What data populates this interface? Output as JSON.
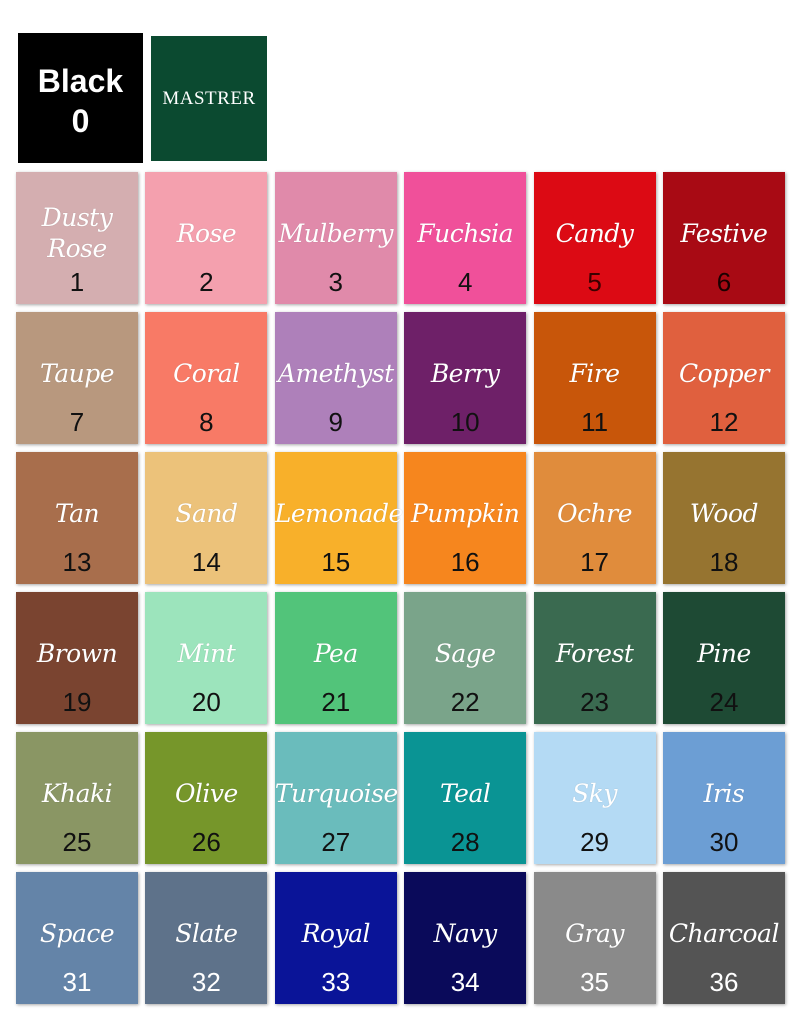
{
  "header": {
    "black_label": "Black",
    "black_number": "0",
    "brand": "MASTRER"
  },
  "swatches": [
    {
      "name": "Dusty Rose",
      "number": "1",
      "color": "#d4aeb0",
      "num_color": "#111"
    },
    {
      "name": "Rose",
      "number": "2",
      "color": "#f4a0ae",
      "num_color": "#111"
    },
    {
      "name": "Mulberry",
      "number": "3",
      "color": "#e08aaa",
      "num_color": "#111"
    },
    {
      "name": "Fuchsia",
      "number": "4",
      "color": "#f0509a",
      "num_color": "#111"
    },
    {
      "name": "Candy",
      "number": "5",
      "color": "#dc0a14",
      "num_color": "#3a0000"
    },
    {
      "name": "Festive",
      "number": "6",
      "color": "#a80a14",
      "num_color": "#1a0000"
    },
    {
      "name": "Taupe",
      "number": "7",
      "color": "#b8987e",
      "num_color": "#111"
    },
    {
      "name": "Coral",
      "number": "8",
      "color": "#f87a66",
      "num_color": "#111"
    },
    {
      "name": "Amethyst",
      "number": "9",
      "color": "#ae80ba",
      "num_color": "#111"
    },
    {
      "name": "Berry",
      "number": "10",
      "color": "#6e2068",
      "num_color": "#111"
    },
    {
      "name": "Fire",
      "number": "11",
      "color": "#c8560a",
      "num_color": "#111"
    },
    {
      "name": "Copper",
      "number": "12",
      "color": "#e0603e",
      "num_color": "#111"
    },
    {
      "name": "Tan",
      "number": "13",
      "color": "#a86e4c",
      "num_color": "#111"
    },
    {
      "name": "Sand",
      "number": "14",
      "color": "#ecc27a",
      "num_color": "#111"
    },
    {
      "name": "Lemonade",
      "number": "15",
      "color": "#f8b02a",
      "num_color": "#111"
    },
    {
      "name": "Pumpkin",
      "number": "16",
      "color": "#f6861e",
      "num_color": "#111"
    },
    {
      "name": "Ochre",
      "number": "17",
      "color": "#e08c3c",
      "num_color": "#111"
    },
    {
      "name": "Wood",
      "number": "18",
      "color": "#967430",
      "num_color": "#111"
    },
    {
      "name": "Brown",
      "number": "19",
      "color": "#7a4430",
      "num_color": "#111"
    },
    {
      "name": "Mint",
      "number": "20",
      "color": "#9ce4bc",
      "num_color": "#111"
    },
    {
      "name": "Pea",
      "number": "21",
      "color": "#52c47a",
      "num_color": "#111"
    },
    {
      "name": "Sage",
      "number": "22",
      "color": "#7aa48a",
      "num_color": "#111"
    },
    {
      "name": "Forest",
      "number": "23",
      "color": "#3a6a50",
      "num_color": "#111"
    },
    {
      "name": "Pine",
      "number": "24",
      "color": "#1e4a34",
      "num_color": "#111"
    },
    {
      "name": "Khaki",
      "number": "25",
      "color": "#8a9664",
      "num_color": "#111"
    },
    {
      "name": "Olive",
      "number": "26",
      "color": "#76962a",
      "num_color": "#111"
    },
    {
      "name": "Turquoise",
      "number": "27",
      "color": "#6abcbc",
      "num_color": "#111"
    },
    {
      "name": "Teal",
      "number": "28",
      "color": "#0a9494",
      "num_color": "#111"
    },
    {
      "name": "Sky",
      "number": "29",
      "color": "#b4daf4",
      "num_color": "#111"
    },
    {
      "name": "Iris",
      "number": "30",
      "color": "#6c9ed4",
      "num_color": "#111"
    },
    {
      "name": "Space",
      "number": "31",
      "color": "#6484a8",
      "num_color": "#fff"
    },
    {
      "name": "Slate",
      "number": "32",
      "color": "#5e728a",
      "num_color": "#fff"
    },
    {
      "name": "Royal",
      "number": "33",
      "color": "#0a1498",
      "num_color": "#fff"
    },
    {
      "name": "Navy",
      "number": "34",
      "color": "#0a0a5a",
      "num_color": "#fff"
    },
    {
      "name": "Gray",
      "number": "35",
      "color": "#8a8a8a",
      "num_color": "#fff"
    },
    {
      "name": "Charcoal",
      "number": "36",
      "color": "#545454",
      "num_color": "#fff"
    }
  ]
}
